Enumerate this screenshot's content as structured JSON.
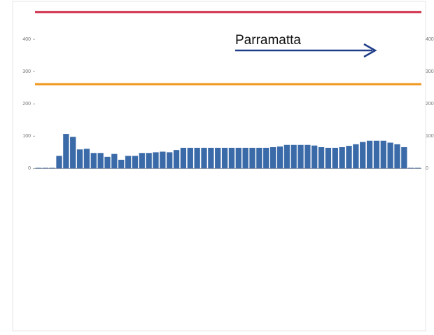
{
  "chart_data": {
    "type": "bar",
    "annotation": "Parramatta",
    "categories": [
      null,
      null,
      null,
      null,
      null,
      null,
      null,
      null,
      null,
      null,
      null,
      null,
      null,
      null,
      null,
      null,
      null,
      null,
      null,
      null,
      null,
      null,
      null,
      null,
      null,
      null,
      null,
      null,
      null,
      null,
      null,
      null,
      null,
      null,
      null,
      null,
      null,
      null,
      null,
      null,
      null,
      null,
      null,
      null,
      null,
      null,
      null,
      null,
      null,
      null,
      null,
      null,
      null,
      null,
      null,
      null
    ],
    "values": [
      2,
      2,
      2,
      39,
      107,
      98,
      59,
      61,
      48,
      48,
      36,
      45,
      27,
      39,
      39,
      48,
      48,
      50,
      52,
      50,
      57,
      64,
      64,
      64,
      64,
      64,
      64,
      64,
      64,
      64,
      64,
      64,
      64,
      64,
      66,
      68,
      73,
      73,
      73,
      73,
      71,
      66,
      64,
      64,
      66,
      70,
      75,
      82,
      86,
      86,
      86,
      80,
      75,
      66,
      2,
      2
    ],
    "color": "#3a6aa8",
    "ylim": [
      -10,
      500
    ],
    "yticks": [
      0,
      100,
      200,
      300,
      400
    ],
    "reference_lines": [
      {
        "value": 484,
        "color": "#d1344f"
      },
      {
        "value": 261,
        "color": "#f0961e"
      }
    ]
  }
}
